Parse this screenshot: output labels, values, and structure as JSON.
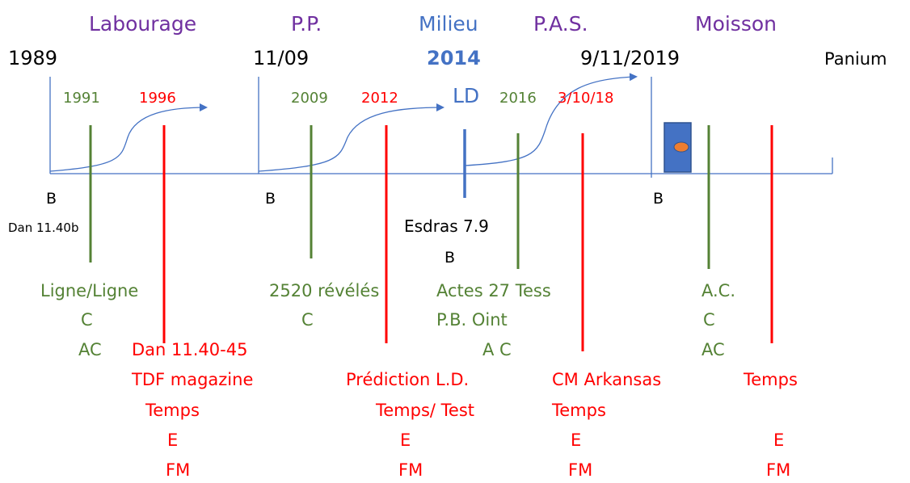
{
  "headings": [
    "Labourage",
    "P.P.",
    "Milieu",
    "P.A.S.",
    "Moisson"
  ],
  "dates": [
    "1989",
    "11/09",
    "2014",
    "9/11/2019",
    "Panium"
  ],
  "years": [
    "1991",
    "1996",
    "2009",
    "2012",
    "LD",
    "2016",
    "3/10/18"
  ],
  "markers": [
    "B",
    "B",
    "B",
    "B"
  ],
  "notes": [
    "Dan 11.40b",
    "Esdras 7.9"
  ],
  "columns": [
    {
      "green": [
        "Ligne/Ligne",
        "C",
        "AC"
      ],
      "red": [
        "Dan 11.40-45",
        "TDF magazine",
        "Temps",
        "E",
        "FM"
      ]
    },
    {
      "green": [
        "2520 révélés",
        "C"
      ],
      "red": [
        "Prédiction L.D.",
        "Temps/ Test",
        "E",
        "FM"
      ]
    },
    {
      "green": [
        "Actes 27 Tess",
        "P.B. Oint",
        "A C"
      ],
      "red": [
        "CM Arkansas",
        "Temps",
        "E",
        "FM"
      ]
    },
    {
      "green": [
        "A.C.",
        "C",
        "AC"
      ],
      "red": [
        "Temps",
        "E",
        "FM"
      ]
    }
  ]
}
